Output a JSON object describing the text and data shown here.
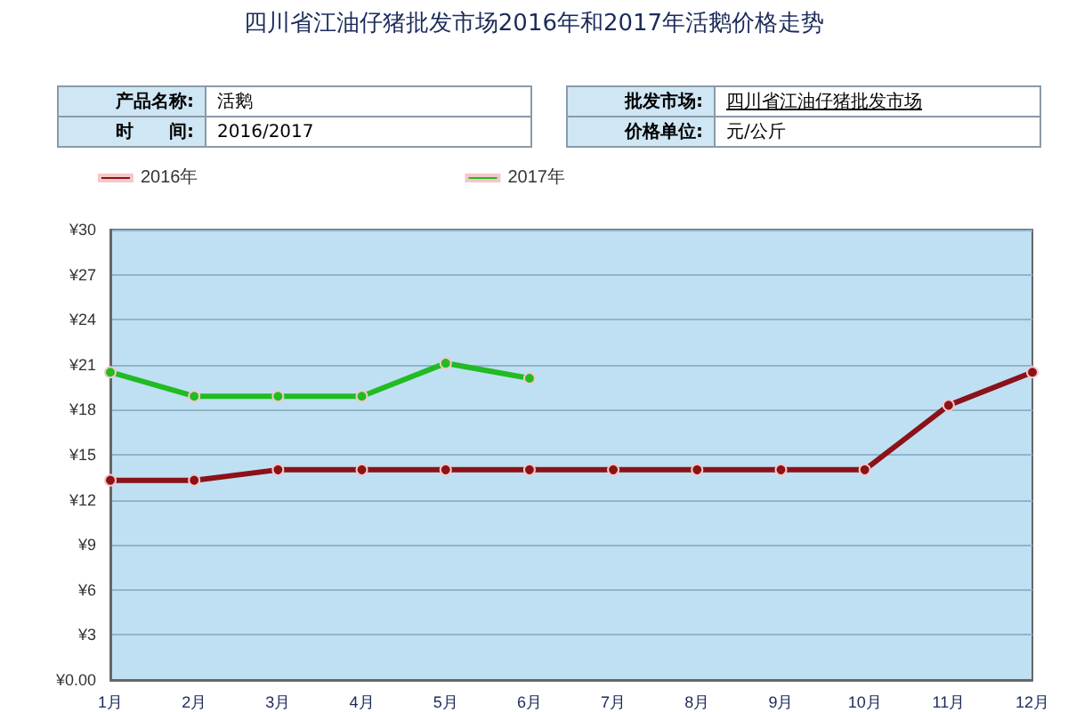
{
  "chart_data": {
    "type": "line",
    "title": "四川省江油仔猪批发市场2016年和2017年活鹅价格走势",
    "annotations": [
      "产品名称:",
      "活鹅",
      "时　　间:",
      "2016/2017",
      "批发市场:",
      "四川省江油仔猪批发市场",
      "价格单位:",
      "元/公斤"
    ],
    "categories": [
      "1月",
      "2月",
      "3月",
      "4月",
      "5月",
      "6月",
      "7月",
      "8月",
      "9月",
      "10月",
      "11月",
      "12月"
    ],
    "series": [
      {
        "name": "2016年",
        "color": "#8b1218",
        "values": [
          13.3,
          13.3,
          14.0,
          14.0,
          14.0,
          14.0,
          14.0,
          14.0,
          14.0,
          14.0,
          18.3,
          20.5
        ]
      },
      {
        "name": "2017年",
        "color": "#22bb22",
        "values": [
          20.5,
          18.9,
          18.9,
          18.9,
          21.1,
          20.1,
          null,
          null,
          null,
          null,
          null,
          null
        ]
      }
    ],
    "ylim": [
      0,
      30
    ],
    "yticks": [
      {
        "value": 0,
        "label": "¥0.00"
      },
      {
        "value": 3,
        "label": "¥3"
      },
      {
        "value": 6,
        "label": "¥6"
      },
      {
        "value": 9,
        "label": "¥9"
      },
      {
        "value": 12,
        "label": "¥12"
      },
      {
        "value": 15,
        "label": "¥15"
      },
      {
        "value": 18,
        "label": "¥18"
      },
      {
        "value": 21,
        "label": "¥21"
      },
      {
        "value": 24,
        "label": "¥24"
      },
      {
        "value": 27,
        "label": "¥27"
      },
      {
        "value": 30,
        "label": "¥30"
      }
    ],
    "grid": "y",
    "legend": "top",
    "marker": "circle",
    "line_style": "solid"
  }
}
